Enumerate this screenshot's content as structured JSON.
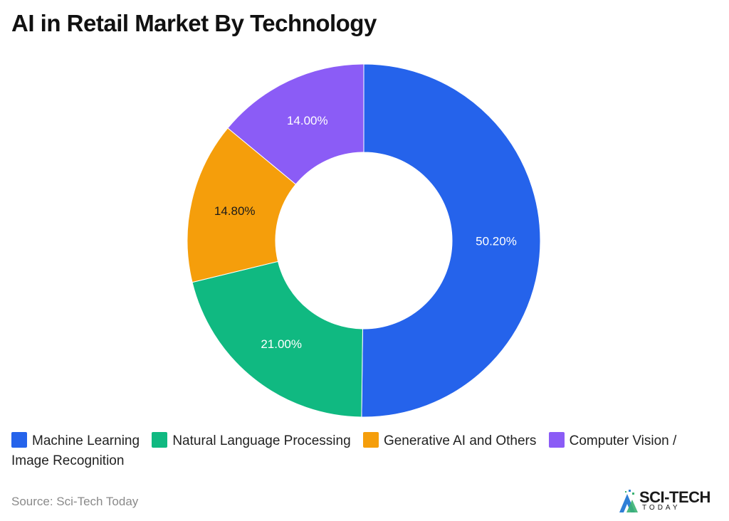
{
  "title": "AI in Retail Market By Technology",
  "source": "Source: Sci-Tech Today",
  "logo": {
    "text": "SCI-TECH",
    "sub": "TODAY"
  },
  "chart_data": {
    "type": "pie",
    "style": "donut",
    "title": "AI in Retail Market By Technology",
    "legend_position": "bottom",
    "series": [
      {
        "name": "Machine Learning",
        "value": 50.2,
        "label": "50.20%",
        "color": "#2563eb",
        "label_color": "#ffffff"
      },
      {
        "name": "Natural Language Processing",
        "value": 21.0,
        "label": "21.00%",
        "color": "#10b981",
        "label_color": "#ffffff"
      },
      {
        "name": "Generative AI and Others",
        "value": 14.8,
        "label": "14.80%",
        "color": "#f59e0b",
        "label_color": "#1a1a1a"
      },
      {
        "name": "Computer Vision / Image Recognition",
        "value": 14.0,
        "label": "14.00%",
        "color": "#8b5cf6",
        "label_color": "#ffffff"
      }
    ]
  }
}
